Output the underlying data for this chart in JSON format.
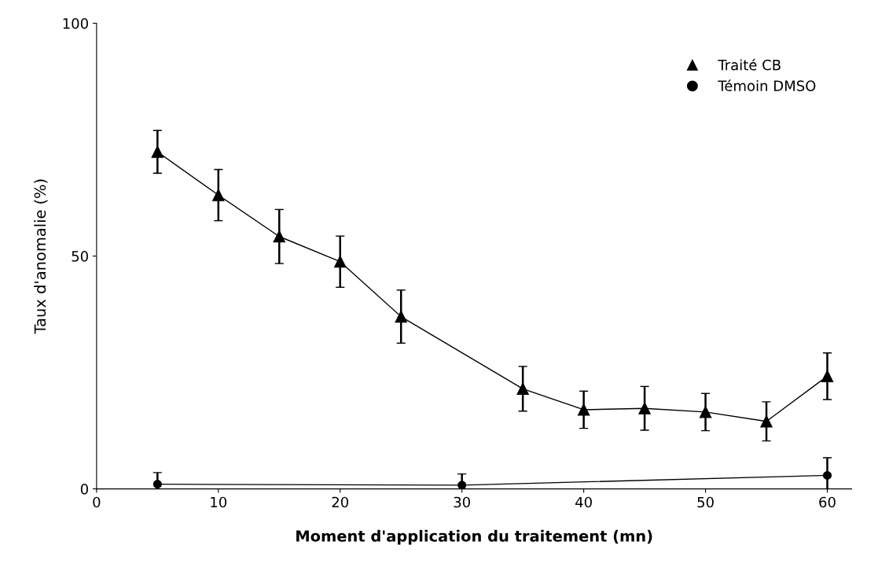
{
  "chart_data": {
    "type": "line",
    "xlabel": "Moment d'application du traitement (mn)",
    "ylabel": "Taux d'anomalie (%)",
    "xlim": [
      0,
      62
    ],
    "xticks": [
      0,
      10,
      20,
      30,
      40,
      50,
      60
    ],
    "ylim": [
      0,
      100
    ],
    "yticks": [
      0,
      50,
      100
    ],
    "grid": false,
    "legend": "top right",
    "series": [
      {
        "name": "Traité CB",
        "color": "#000000",
        "marker": "triangle",
        "x": [
          5,
          10,
          15,
          20,
          25,
          35,
          40,
          45,
          50,
          55,
          60
        ],
        "values": [
          72.4,
          63.1,
          54.2,
          48.8,
          37,
          21.5,
          17,
          17.3,
          16.5,
          14.5,
          24.2
        ],
        "errors": [
          4.6,
          5.5,
          5.8,
          5.5,
          5.7,
          4.8,
          4,
          4.7,
          4,
          4.2,
          5
        ]
      },
      {
        "name": "Témoin DMSO",
        "color": "#000000",
        "marker": "circle",
        "x": [
          5,
          30,
          60
        ],
        "values": [
          1,
          0.8,
          2.9
        ],
        "errors": [
          2.5,
          2.4,
          3.8
        ]
      }
    ]
  }
}
